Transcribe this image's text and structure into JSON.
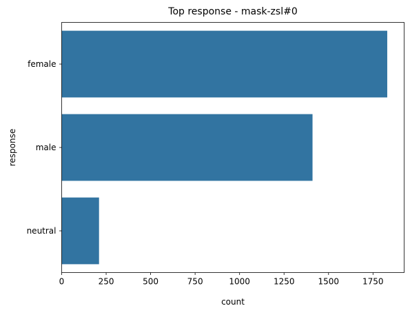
{
  "chart_data": {
    "type": "bar",
    "orientation": "horizontal",
    "title": "Top  response - mask-zsl#0",
    "xlabel": "count",
    "ylabel": "response",
    "categories": [
      "female",
      "male",
      "neutral"
    ],
    "values": [
      1830,
      1410,
      210
    ],
    "xlim": [
      0,
      1925
    ],
    "xticks": [
      0,
      250,
      500,
      750,
      1000,
      1250,
      1500,
      1750
    ],
    "bar_color": "#3274a1",
    "grid": false,
    "legend": "none"
  }
}
